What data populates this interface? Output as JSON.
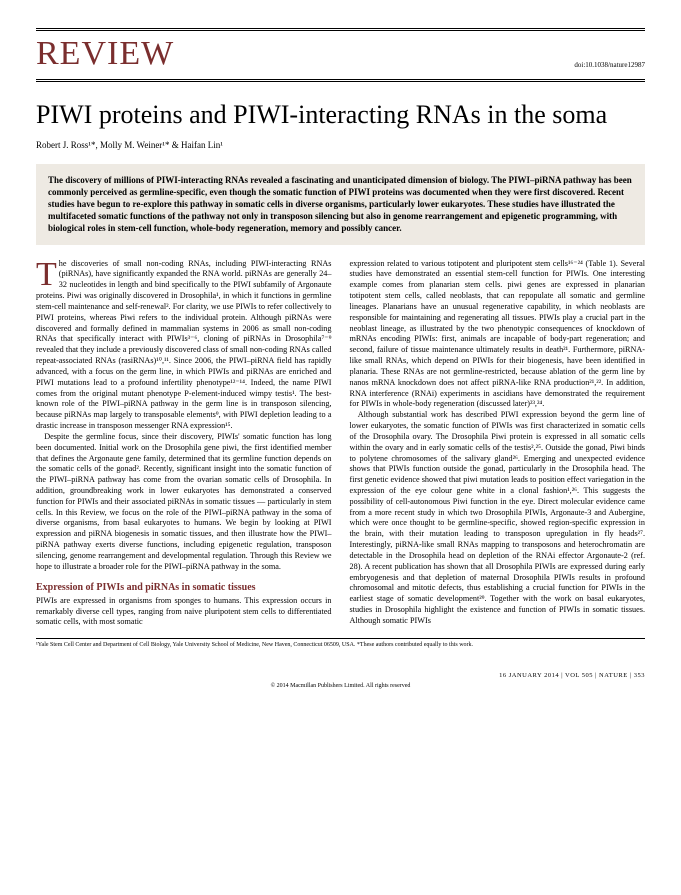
{
  "header": {
    "review_label": "REVIEW",
    "doi": "doi:10.1038/nature12987"
  },
  "title": "PIWI proteins and PIWI-interacting RNAs in the soma",
  "authors_html": "Robert J. Ross¹*, Molly M. Weiner¹* & Haifan Lin¹",
  "abstract": "The discovery of millions of PIWI-interacting RNAs revealed a fascinating and unanticipated dimension of biology. The PIWI–piRNA pathway has been commonly perceived as germline-specific, even though the somatic function of PIWI proteins was documented when they were first discovered. Recent studies have begun to re-explore this pathway in somatic cells in diverse organisms, particularly lower eukaryotes. These studies have illustrated the multifaceted somatic functions of the pathway not only in transposon silencing but also in genome rearrangement and epigenetic programming, with biological roles in stem-cell function, whole-body regeneration, memory and possibly cancer.",
  "col1": {
    "p1": "he discoveries of small non-coding RNAs, including PIWI-interacting RNAs (piRNAs), have significantly expanded the RNA world. piRNAs are generally 24–32 nucleotides in length and bind specifically to the PIWI subfamily of Argonaute proteins. Piwi was originally discovered in Drosophila¹, in which it functions in germline stem-cell maintenance and self-renewal². For clarity, we use PIWIs to refer collectively to PIWI proteins, whereas Piwi refers to the individual protein. Although piRNAs were discovered and formally defined in mammalian systems in 2006 as small non-coding RNAs that specifically interact with PIWIs³⁻⁶, cloning of piRNAs in Drosophila⁷⁻⁹ revealed that they include a previously discovered class of small non-coding RNAs called repeat-associated RNAs (rasiRNAs)¹⁰,¹¹. Since 2006, the PIWI–piRNA field has rapidly advanced, with a focus on the germ line, in which PIWIs and piRNAs are enriched and PIWI mutations lead to a profound infertility phenotype¹²⁻¹⁴. Indeed, the name PIWI comes from the original mutant phenotype P-element-induced wimpy testis¹. The best-known role of the PIWI–piRNA pathway in the germ line is in transposon silencing, because piRNAs map largely to transposable elements⁹, with PIWI depletion leading to a drastic increase in transposon messenger RNA expression¹⁵.",
    "p2": "Despite the germline focus, since their discovery, PIWIs' somatic function has long been documented. Initial work on the Drosophila gene piwi, the first identified member that defines the Argonaute gene family, determined that its germline function depends on the somatic cells of the gonad². Recently, significant insight into the somatic function of the PIWI–piRNA pathway has come from the ovarian somatic cells of Drosophila. In addition, groundbreaking work in lower eukaryotes has demonstrated a conserved function for PIWIs and their associated piRNAs in somatic tissues — particularly in stem cells. In this Review, we focus on the role of the PIWI–piRNA pathway in the soma of diverse organisms, from basal eukaryotes to humans. We begin by looking at PIWI expression and piRNA biogenesis in somatic tissues, and then illustrate how the PIWI–piRNA pathway exerts diverse functions, including epigenetic regulation, transposon silencing, genome rearrangement and developmental regulation. Through this Review we hope to illustrate a broader role for the PIWI–piRNA pathway in the soma.",
    "heading": "Expression of PIWIs and piRNAs in somatic tissues",
    "p3": "PIWIs are expressed in organisms from sponges to humans. This expression occurs in remarkably diverse cell types, ranging from naive pluripotent stem cells to differentiated somatic cells, with most somatic"
  },
  "col2": {
    "p1": "expression related to various totipotent and pluripotent stem cells¹⁶⁻²⁴ (Table 1). Several studies have demonstrated an essential stem-cell function for PIWIs. One interesting example comes from planarian stem cells. piwi genes are expressed in planarian totipotent stem cells, called neoblasts, that can repopulate all somatic and germline lineages. Planarians have an unusual regenerative capability, in which neoblasts are responsible for maintaining and regenerating all tissues. PIWIs play a crucial part in the neoblast lineage, as illustrated by the two phenotypic consequences of knockdown of mRNAs encoding PIWIs: first, animals are incapable of body-part regeneration; and second, failure of tissue maintenance ultimately results in death²¹. Furthermore, piRNA-like small RNAs, which depend on PIWIs for their biogenesis, have been identified in planaria. These RNAs are not germline-restricted, because ablation of the germ line by nanos mRNA knockdown does not affect piRNA-like RNA production²¹,²². In addition, RNA interference (RNAi) experiments in ascidians have demonstrated the requirement for PIWIs in whole-body regeneration (discussed later)²³,²⁴.",
    "p2": "Although substantial work has described PIWI expression beyond the germ line of lower eukaryotes, the somatic function of PIWIs was first characterized in somatic cells of the Drosophila ovary. The Drosophila Piwi protein is expressed in all somatic cells within the ovary and in early somatic cells of the testis²,²⁵. Outside the gonad, Piwi binds to polytene chromosomes of the salivary gland²⁶. Emerging and unexpected evidence shows that PIWIs function outside the gonad, particularly in the Drosophila head. The first genetic evidence showed that piwi mutation leads to position effect variegation in the expression of the eye colour gene white in a clonal fashion¹,²⁶. This suggests the possibility of cell-autonomous Piwi function in the eye. Direct molecular evidence came from a more recent study in which two Drosophila PIWIs, Argonaute-3 and Aubergine, which were once thought to be germline-specific, showed region-specific expression in the brain, with their mutation leading to transposon upregulation in fly heads²⁷. Interestingly, piRNA-like small RNAs mapping to transposons and heterochromatin are detectable in the Drosophila head on depletion of the RNAi effector Argonaute-2 (ref. 28). A recent publication has shown that all Drosophila PIWIs are expressed during early embryogenesis and that depletion of maternal Drosophila PIWIs results in profound chromosomal and mitotic defects, thus establishing a crucial function for PIWIs in the earliest stage of somatic development²⁹. Together with the work on basal eukaryotes, studies in Drosophila highlight the existence and function of PIWIs in somatic tissues. Although somatic PIWIs"
  },
  "affiliation": "¹Yale Stem Cell Center and Department of Cell Biology, Yale University School of Medicine, New Haven, Connecticut 06509, USA. *These authors contributed equally to this work.",
  "footer": {
    "left": "",
    "right": "16 JANUARY 2014 | VOL 505 | NATURE | 353",
    "copyright": "© 2014 Macmillan Publishers Limited. All rights reserved"
  }
}
